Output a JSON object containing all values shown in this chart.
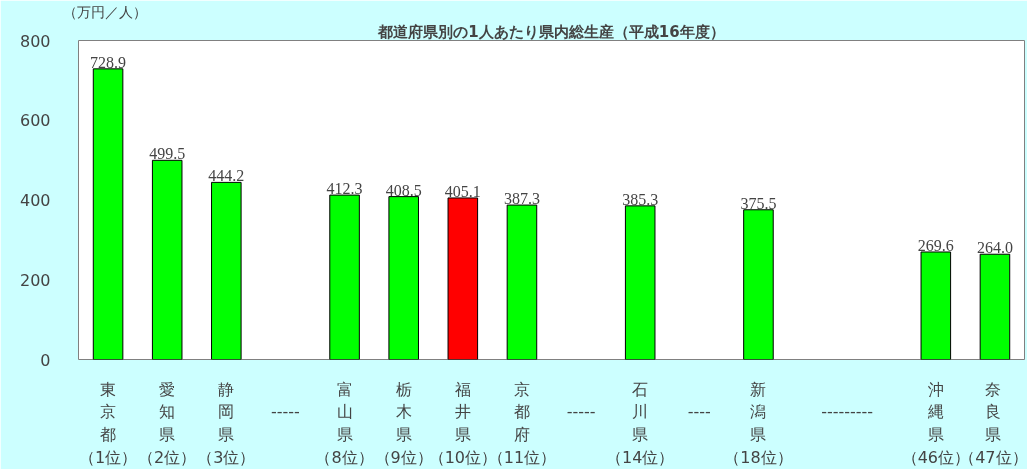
{
  "chart_data": {
    "type": "bar",
    "title": "都道府県別の1人あたり県内総生産（平成16年度）",
    "ylabel": "（万円／人）",
    "categories": [
      "東京都（1位）",
      "愛知県（2位）",
      "静岡県（3位）",
      null,
      "富山県（8位）",
      "栃木県（9位）",
      "福井県（10位）",
      "京都府（11位）",
      null,
      "石川県（14位）",
      null,
      "新潟県（18位）",
      null,
      null,
      "沖縄県（46位）",
      "奈良県（47位）"
    ],
    "values": [
      728.9,
      499.5,
      444.2,
      null,
      412.3,
      408.5,
      405.1,
      387.3,
      null,
      385.3,
      null,
      375.5,
      null,
      null,
      269.6,
      264.0
    ],
    "value_labels": [
      "728.9",
      "499.5",
      "444.2",
      null,
      "412.3",
      "408.5",
      "405.1",
      "387.3",
      null,
      "385.3",
      null,
      "375.5",
      null,
      null,
      "269.6",
      "264.0"
    ],
    "colors": [
      "#00ff00",
      "#00ff00",
      "#00ff00",
      null,
      "#00ff00",
      "#00ff00",
      "#ff0000",
      "#00ff00",
      null,
      "#00ff00",
      null,
      "#00ff00",
      null,
      null,
      "#00ff00",
      "#00ff00"
    ],
    "annotations": [
      "-----",
      "-----",
      "----",
      "---------"
    ],
    "ylim": [
      0,
      800
    ],
    "yticks": [
      0,
      200,
      400,
      600,
      800
    ],
    "grid": false
  }
}
